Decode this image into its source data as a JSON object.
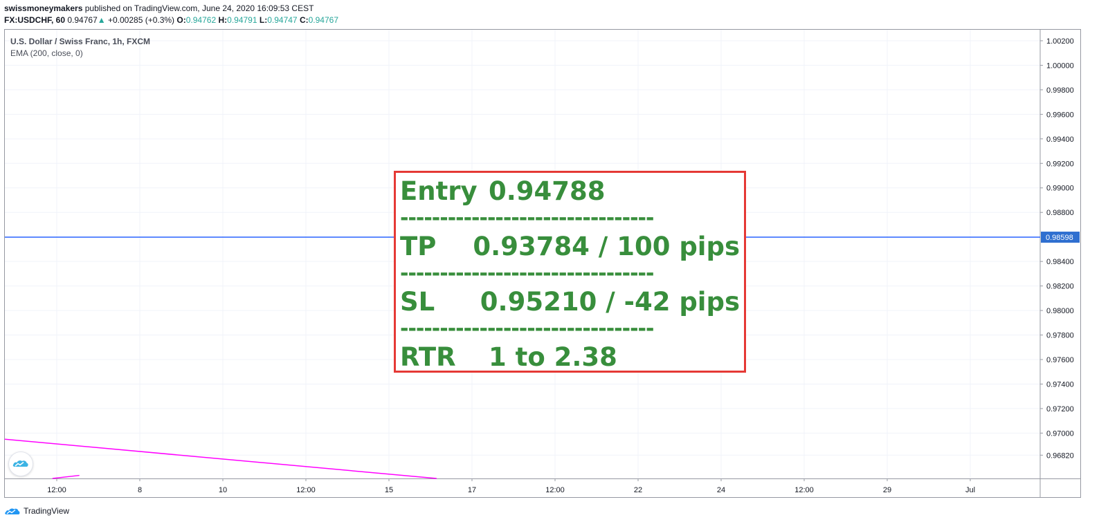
{
  "header": {
    "author": "swissmoneymakers",
    "published": "published on TradingView.com, June 24, 2020 16:09:53 CEST"
  },
  "ohlc": {
    "symbol": "FX:USDCHF, 60",
    "last": "0.94767",
    "change_arrow": "▲",
    "change": "+0.00285 (+0.3%)",
    "o_label": "O:",
    "o": "0.94762",
    "h_label": "H:",
    "h": "0.94791",
    "l_label": "L:",
    "l": "0.94747",
    "c_label": "C:",
    "c": "0.94767"
  },
  "legend": {
    "title": "U.S. Dollar / Swiss Franc, 1h, FXCM",
    "indicator": "EMA (200, close, 0)"
  },
  "trade_box": {
    "entry_label": "Entry",
    "entry_value": "0.94788",
    "tp_label": "TP",
    "tp_value": "0.93784 / 100 pips",
    "sl_label": "SL",
    "sl_value": "0.95210 / -42 pips",
    "rtr_label": "RTR",
    "rtr_value": "1 to 2.38",
    "separator": "--------------------------------"
  },
  "footer": {
    "brand": "TradingView"
  },
  "colors": {
    "price_line": "#2962ff",
    "ema_line": "#ff00ff",
    "trade_text": "#388e3c",
    "box_border": "#e53935",
    "price_badge": "#2f6fd0"
  },
  "icons": {
    "logo": "tradingview-cloud-icon"
  },
  "chart_data": {
    "type": "line",
    "y_axis_ticks": [
      "1.00200",
      "1.00000",
      "0.99800",
      "0.99600",
      "0.99400",
      "0.99200",
      "0.99000",
      "0.98800",
      "0.98400",
      "0.98200",
      "0.98000",
      "0.97800",
      "0.97600",
      "0.97400",
      "0.97200",
      "0.97000",
      "0.96820"
    ],
    "x_axis_ticks": [
      "12:00",
      "8",
      "10",
      "12:00",
      "15",
      "17",
      "12:00",
      "22",
      "24",
      "12:00",
      "29",
      "Jul"
    ],
    "current_price_label": "0.98598",
    "ylim": [
      0.9663,
      1.0029
    ],
    "series": [
      {
        "name": "EMA (200, close, 0)",
        "color": "#ff00ff",
        "points": [
          [
            0.0,
            0.9695
          ],
          [
            0.417,
            0.9663
          ]
        ]
      },
      {
        "name": "",
        "color": "#ff00ff",
        "points": [
          [
            0.046,
            0.9663
          ],
          [
            0.072,
            0.96655
          ]
        ]
      }
    ],
    "grid": true,
    "legend": "top-left"
  }
}
